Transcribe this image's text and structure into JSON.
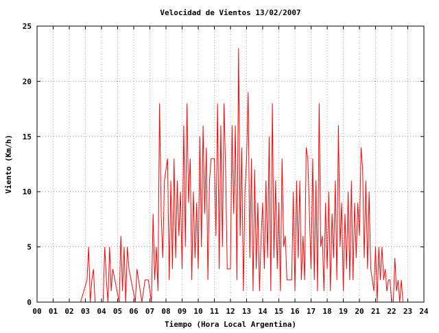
{
  "chart_data": {
    "type": "line",
    "title": "Velocidad de Vientos 13/02/2007",
    "xlabel": "Tiempo (Hora Local Argentina)",
    "ylabel": "Viento (Km/h)",
    "xlim": [
      0,
      24
    ],
    "ylim": [
      0,
      25
    ],
    "x_ticks": [
      0,
      1,
      2,
      3,
      4,
      5,
      6,
      7,
      8,
      9,
      10,
      11,
      12,
      13,
      14,
      15,
      16,
      17,
      18,
      19,
      20,
      21,
      22,
      23,
      24
    ],
    "x_tick_labels": [
      "00",
      "01",
      "02",
      "03",
      "04",
      "05",
      "06",
      "07",
      "08",
      "09",
      "10",
      "11",
      "12",
      "13",
      "14",
      "15",
      "16",
      "17",
      "18",
      "19",
      "20",
      "21",
      "22",
      "23",
      "24"
    ],
    "y_ticks": [
      0,
      5,
      10,
      15,
      20,
      25
    ],
    "y_tick_labels": [
      "0",
      "5",
      "10",
      "15",
      "20",
      "25"
    ],
    "grid": true,
    "legend": "none",
    "series": [
      {
        "color": "#ff0000",
        "x": [
          0,
          2.7,
          3.1,
          3.2,
          3.3,
          3.4,
          3.5,
          3.6,
          4.1,
          4.2,
          4.3,
          4.4,
          4.5,
          4.6,
          4.7,
          5.1,
          5.2,
          5.3,
          5.4,
          5.5,
          5.6,
          5.7,
          6.1,
          6.2,
          6.3,
          6.5,
          6.7,
          6.9,
          7.1,
          7.2,
          7.3,
          7.4,
          7.5,
          7.6,
          7.7,
          7.8,
          7.9,
          8.0,
          8.1,
          8.2,
          8.3,
          8.4,
          8.5,
          8.6,
          8.7,
          8.8,
          8.9,
          9.0,
          9.1,
          9.2,
          9.3,
          9.4,
          9.5,
          9.6,
          9.7,
          9.8,
          9.9,
          10.0,
          10.1,
          10.2,
          10.3,
          10.4,
          10.5,
          10.6,
          10.7,
          10.8,
          10.9,
          11.0,
          11.1,
          11.2,
          11.3,
          11.4,
          11.5,
          11.6,
          11.7,
          11.8,
          11.9,
          12.0,
          12.1,
          12.2,
          12.3,
          12.4,
          12.5,
          12.6,
          12.7,
          12.8,
          12.9,
          13.0,
          13.1,
          13.2,
          13.3,
          13.4,
          13.5,
          13.6,
          13.7,
          13.8,
          13.9,
          14.0,
          14.1,
          14.2,
          14.3,
          14.4,
          14.5,
          14.6,
          14.7,
          14.8,
          14.9,
          15.0,
          15.1,
          15.2,
          15.3,
          15.4,
          15.5,
          15.6,
          15.7,
          15.8,
          15.9,
          16.0,
          16.1,
          16.2,
          16.3,
          16.4,
          16.5,
          16.6,
          16.7,
          16.8,
          16.9,
          17.0,
          17.1,
          17.2,
          17.3,
          17.4,
          17.5,
          17.6,
          17.7,
          17.8,
          17.9,
          18.0,
          18.1,
          18.2,
          18.3,
          18.4,
          18.5,
          18.6,
          18.7,
          18.8,
          18.9,
          19.0,
          19.1,
          19.2,
          19.3,
          19.4,
          19.5,
          19.6,
          19.7,
          19.8,
          19.9,
          20.0,
          20.1,
          20.2,
          20.3,
          20.4,
          20.5,
          20.6,
          20.7,
          20.8,
          20.9,
          21.0,
          21.1,
          21.2,
          21.3,
          21.4,
          21.5,
          21.6,
          21.7,
          21.8,
          21.9,
          22.0,
          22.1,
          22.2,
          22.3,
          22.4,
          22.5,
          22.6,
          22.7
        ],
        "y": [
          0,
          0,
          2,
          5,
          0,
          2,
          3,
          0,
          0,
          5,
          2,
          0,
          5,
          1,
          3,
          0,
          6,
          1,
          5,
          0,
          5,
          3,
          0,
          3,
          2,
          0,
          2,
          2,
          0,
          8,
          2,
          5,
          1,
          18,
          8,
          4,
          11,
          12,
          13,
          2,
          11,
          3,
          13,
          4,
          11,
          6,
          10,
          3,
          16,
          5,
          18,
          9,
          13,
          2,
          10,
          4,
          9,
          3,
          15,
          5,
          16,
          8,
          14,
          2,
          11,
          13,
          13,
          13,
          6,
          18,
          3,
          16,
          5,
          18,
          12,
          3,
          3,
          3,
          16,
          8,
          16,
          2,
          23,
          6,
          14,
          1,
          10,
          13,
          19,
          4,
          13,
          1,
          12,
          3,
          9,
          1,
          6,
          9,
          3,
          11,
          4,
          15,
          1,
          18,
          4,
          11,
          3,
          9,
          1,
          13,
          5,
          6,
          2,
          2,
          2,
          2,
          10,
          1,
          11,
          4,
          11,
          2,
          6,
          2,
          14,
          13,
          8,
          3,
          13,
          2,
          11,
          1,
          18,
          5,
          6,
          1,
          9,
          3,
          10,
          1,
          8,
          4,
          11,
          2,
          16,
          5,
          9,
          1,
          8,
          3,
          10,
          2,
          11,
          2,
          9,
          4,
          9,
          6,
          14,
          12,
          4,
          11,
          3,
          10,
          3,
          2,
          1,
          5,
          0,
          5,
          2,
          5,
          2,
          3,
          1,
          2,
          2,
          0,
          0,
          4,
          1,
          2,
          0,
          2,
          0
        ]
      }
    ]
  }
}
